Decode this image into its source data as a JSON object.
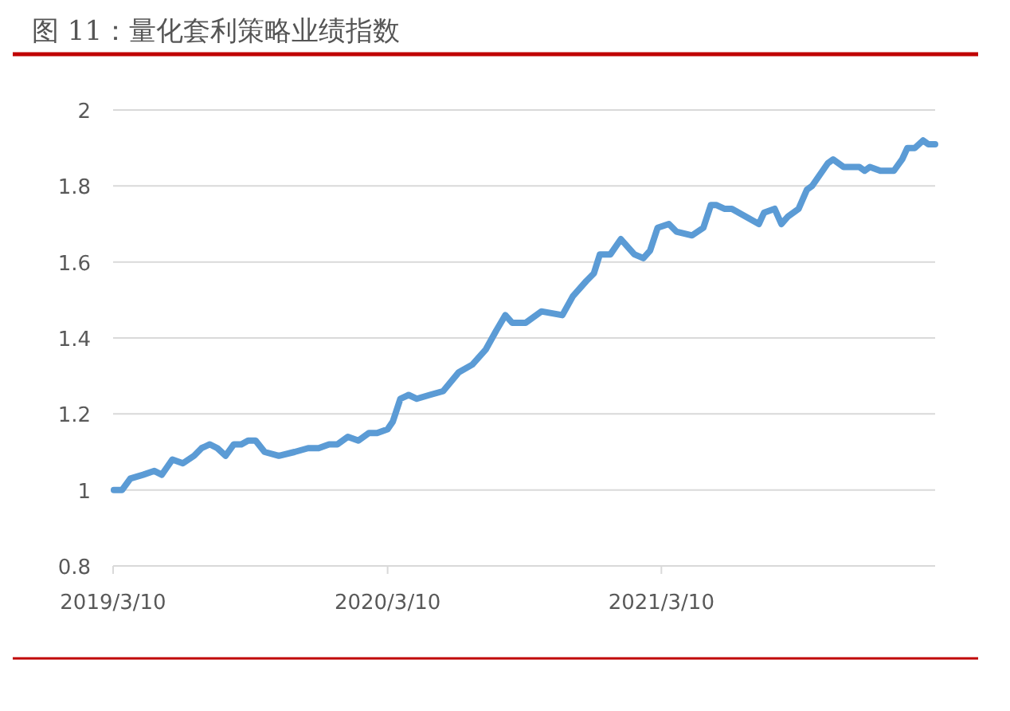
{
  "chart_data": {
    "type": "line",
    "title": "图 11：量化套利策略业绩指数",
    "x": [
      "2019-03-11",
      "2019-03-22",
      "2019-04-02",
      "2019-04-19",
      "2019-05-04",
      "2019-05-14",
      "2019-05-28",
      "2019-06-11",
      "2019-06-26",
      "2019-07-06",
      "2019-07-17",
      "2019-07-27",
      "2019-08-07",
      "2019-08-18",
      "2019-08-28",
      "2019-09-06",
      "2019-09-16",
      "2019-09-28",
      "2019-10-17",
      "2019-11-07",
      "2019-11-25",
      "2019-12-09",
      "2019-12-23",
      "2020-01-03",
      "2020-01-17",
      "2020-01-31",
      "2020-02-14",
      "2020-02-25",
      "2020-03-10",
      "2020-03-17",
      "2020-03-27",
      "2020-04-07",
      "2020-04-18",
      "2020-05-05",
      "2020-05-23",
      "2020-06-13",
      "2020-07-01",
      "2020-07-19",
      "2020-08-02",
      "2020-08-14",
      "2020-08-23",
      "2020-09-10",
      "2020-09-17",
      "2020-10-01",
      "2020-10-29",
      "2020-11-12",
      "2020-11-30",
      "2020-12-10",
      "2020-12-18",
      "2021-01-01",
      "2021-01-15",
      "2021-02-02",
      "2021-02-14",
      "2021-02-23",
      "2021-03-05",
      "2021-03-20",
      "2021-03-30",
      "2021-04-20",
      "2021-05-05",
      "2021-05-15",
      "2021-05-22",
      "2021-06-02",
      "2021-06-12",
      "2021-06-30",
      "2021-07-18",
      "2021-07-25",
      "2021-08-08",
      "2021-08-17",
      "2021-08-26",
      "2021-09-09",
      "2021-09-20",
      "2021-09-27",
      "2021-10-18",
      "2021-10-25",
      "2021-11-08",
      "2021-11-19",
      "2021-11-29",
      "2021-12-06",
      "2021-12-13",
      "2021-12-27",
      "2022-01-14",
      "2022-01-25",
      "2022-02-01",
      "2022-02-11",
      "2022-02-22",
      "2022-03-01",
      "2022-03-10"
    ],
    "series": [
      {
        "color": "#5b9bd5",
        "values": [
          1.0,
          1.0,
          1.03,
          1.04,
          1.05,
          1.04,
          1.08,
          1.07,
          1.09,
          1.11,
          1.12,
          1.11,
          1.09,
          1.12,
          1.12,
          1.13,
          1.13,
          1.1,
          1.09,
          1.1,
          1.11,
          1.11,
          1.12,
          1.12,
          1.14,
          1.13,
          1.15,
          1.15,
          1.16,
          1.18,
          1.24,
          1.25,
          1.24,
          1.25,
          1.26,
          1.31,
          1.33,
          1.37,
          1.42,
          1.46,
          1.44,
          1.44,
          1.45,
          1.47,
          1.46,
          1.51,
          1.55,
          1.57,
          1.62,
          1.62,
          1.66,
          1.62,
          1.61,
          1.63,
          1.69,
          1.7,
          1.68,
          1.67,
          1.69,
          1.75,
          1.75,
          1.74,
          1.74,
          1.72,
          1.7,
          1.73,
          1.74,
          1.7,
          1.72,
          1.74,
          1.79,
          1.8,
          1.86,
          1.87,
          1.85,
          1.85,
          1.85,
          1.84,
          1.85,
          1.84,
          1.84,
          1.87,
          1.9,
          1.9,
          1.92,
          1.91,
          1.91
        ]
      }
    ],
    "xlim": [
      "2019-03-10",
      "2022-03-10"
    ],
    "xticks": [
      {
        "value": "2019-03-10",
        "label": "2019/3/10"
      },
      {
        "value": "2020-03-10",
        "label": "2020/3/10"
      },
      {
        "value": "2021-03-10",
        "label": "2021/3/10"
      }
    ],
    "ylim": [
      0.8,
      2
    ],
    "yticks": [
      0.8,
      1,
      1.2,
      1.4,
      1.6,
      1.8,
      2
    ],
    "grid": "y"
  }
}
